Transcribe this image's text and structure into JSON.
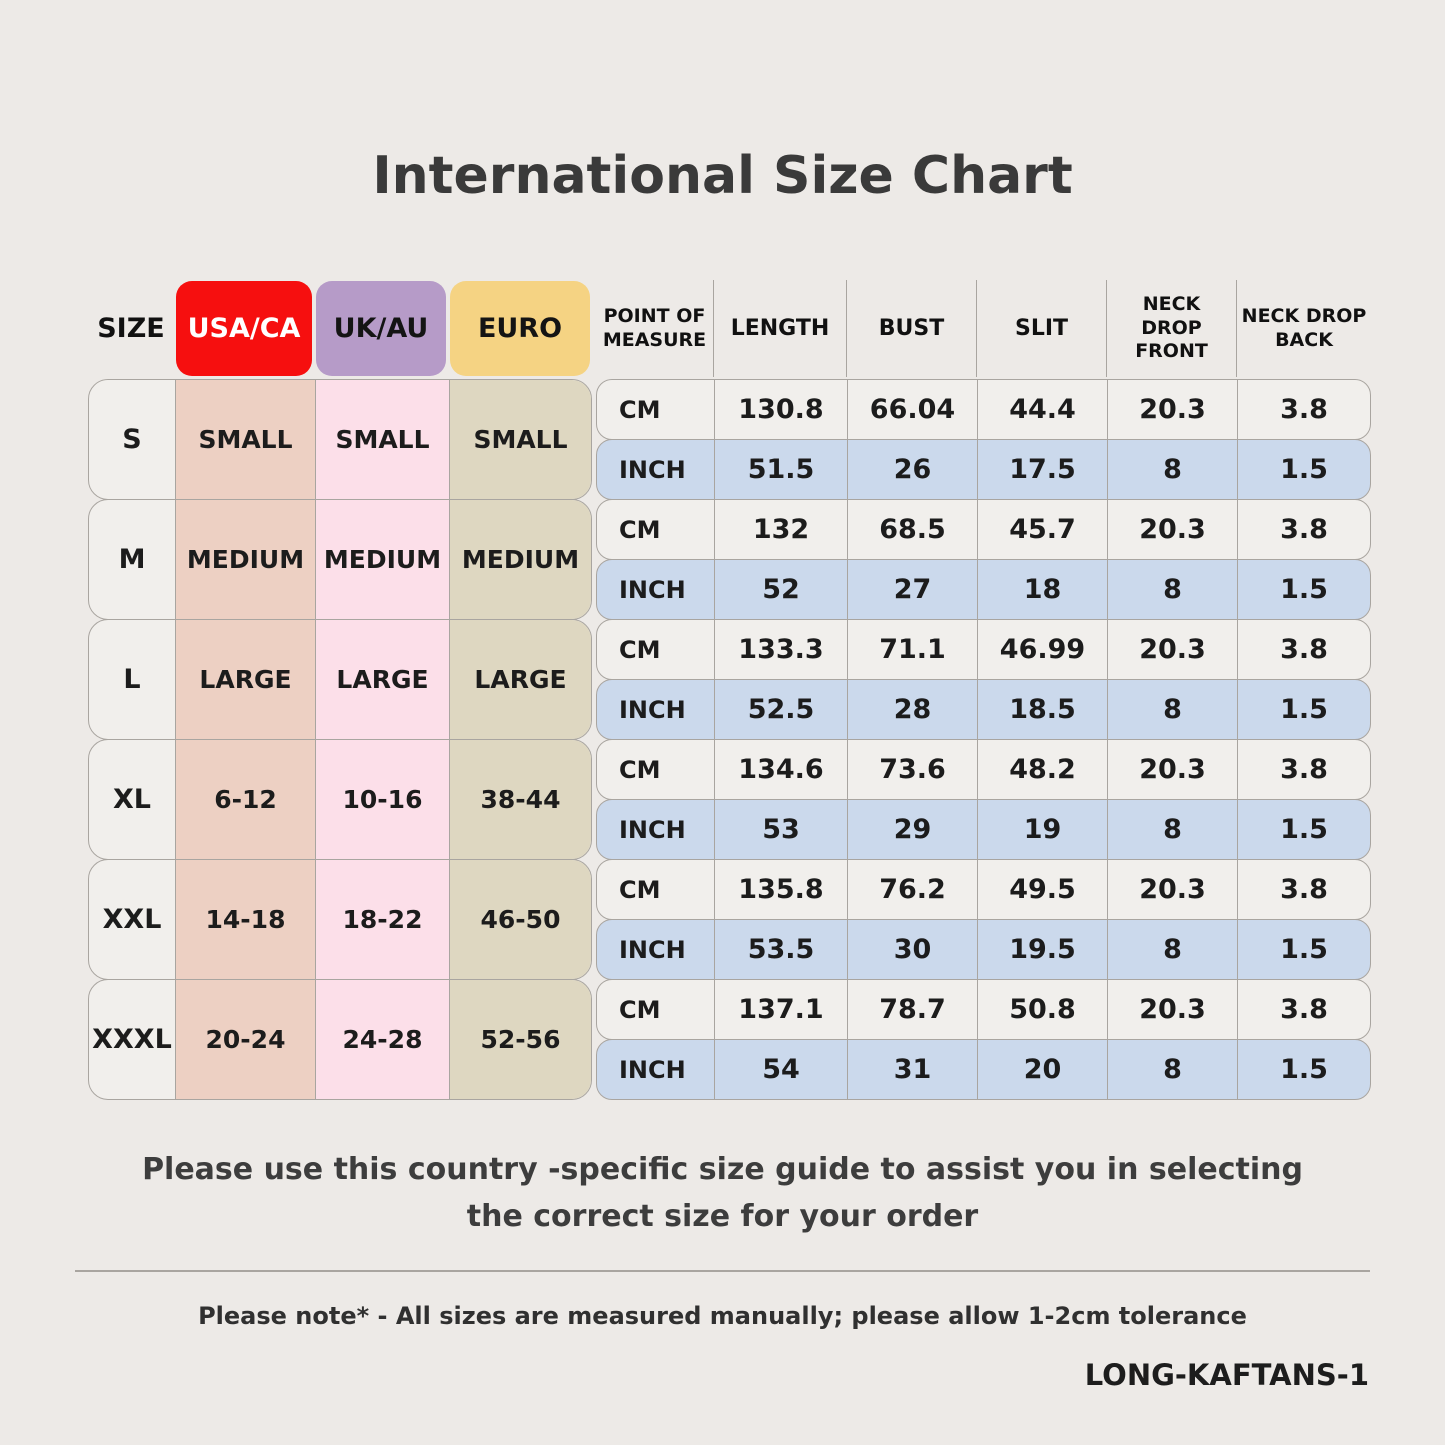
{
  "colors": {
    "page-bg": "#edeae7",
    "title": "#3a3a3a",
    "text": "#1c1c1c",
    "border": "#a9a5a0",
    "chip-usa-bg": "#f60f0f",
    "chip-usa-text": "#ffffff",
    "chip-uk-bg": "#b69bc8",
    "chip-euro-bg": "#f5d383",
    "col-size-bg": "#f1efec",
    "col-usa-bg": "#edd0c3",
    "col-uk-bg": "#fcdfe9",
    "col-euro-bg": "#ded7c1",
    "row-cm-bg": "#f1efec",
    "row-inch-bg": "#cbd9ec"
  },
  "title": "International Size Chart",
  "size_table": {
    "headers": {
      "size": "SIZE",
      "usa": "USA/CA",
      "uk": "UK/AU",
      "euro": "EURO"
    },
    "rows": [
      {
        "size": "S",
        "usa": "SMALL",
        "uk": "SMALL",
        "euro": "SMALL"
      },
      {
        "size": "M",
        "usa": "MEDIUM",
        "uk": "MEDIUM",
        "euro": "MEDIUM"
      },
      {
        "size": "L",
        "usa": "LARGE",
        "uk": "LARGE",
        "euro": "LARGE"
      },
      {
        "size": "XL",
        "usa": "6-12",
        "uk": "10-16",
        "euro": "38-44"
      },
      {
        "size": "XXL",
        "usa": "14-18",
        "uk": "18-22",
        "euro": "46-50"
      },
      {
        "size": "XXXL",
        "usa": "20-24",
        "uk": "24-28",
        "euro": "52-56"
      }
    ]
  },
  "measure_table": {
    "headers": [
      "POINT OF MEASURE",
      "LENGTH",
      "BUST",
      "SLIT",
      "NECK DROP FRONT",
      "NECK DROP BACK"
    ],
    "unit_labels": {
      "cm": "CM",
      "inch": "INCH"
    },
    "blocks": [
      {
        "cm": {
          "length": "130.8",
          "bust": "66.04",
          "slit": "44.4",
          "ndf": "20.3",
          "ndb": "3.8"
        },
        "inch": {
          "length": "51.5",
          "bust": "26",
          "slit": "17.5",
          "ndf": "8",
          "ndb": "1.5"
        }
      },
      {
        "cm": {
          "length": "132",
          "bust": "68.5",
          "slit": "45.7",
          "ndf": "20.3",
          "ndb": "3.8"
        },
        "inch": {
          "length": "52",
          "bust": "27",
          "slit": "18",
          "ndf": "8",
          "ndb": "1.5"
        }
      },
      {
        "cm": {
          "length": "133.3",
          "bust": "71.1",
          "slit": "46.99",
          "ndf": "20.3",
          "ndb": "3.8"
        },
        "inch": {
          "length": "52.5",
          "bust": "28",
          "slit": "18.5",
          "ndf": "8",
          "ndb": "1.5"
        }
      },
      {
        "cm": {
          "length": "134.6",
          "bust": "73.6",
          "slit": "48.2",
          "ndf": "20.3",
          "ndb": "3.8"
        },
        "inch": {
          "length": "53",
          "bust": "29",
          "slit": "19",
          "ndf": "8",
          "ndb": "1.5"
        }
      },
      {
        "cm": {
          "length": "135.8",
          "bust": "76.2",
          "slit": "49.5",
          "ndf": "20.3",
          "ndb": "3.8"
        },
        "inch": {
          "length": "53.5",
          "bust": "30",
          "slit": "19.5",
          "ndf": "8",
          "ndb": "1.5"
        }
      },
      {
        "cm": {
          "length": "137.1",
          "bust": "78.7",
          "slit": "50.8",
          "ndf": "20.3",
          "ndb": "3.8"
        },
        "inch": {
          "length": "54",
          "bust": "31",
          "slit": "20",
          "ndf": "8",
          "ndb": "1.5"
        }
      }
    ]
  },
  "footer": {
    "guide_line1": "Please use this country -specific size guide to assist you in selecting",
    "guide_line2": "the correct size for your order",
    "note": "Please note* - All sizes are measured manually; please allow 1-2cm tolerance",
    "sku": "LONG-KAFTANS-1"
  }
}
